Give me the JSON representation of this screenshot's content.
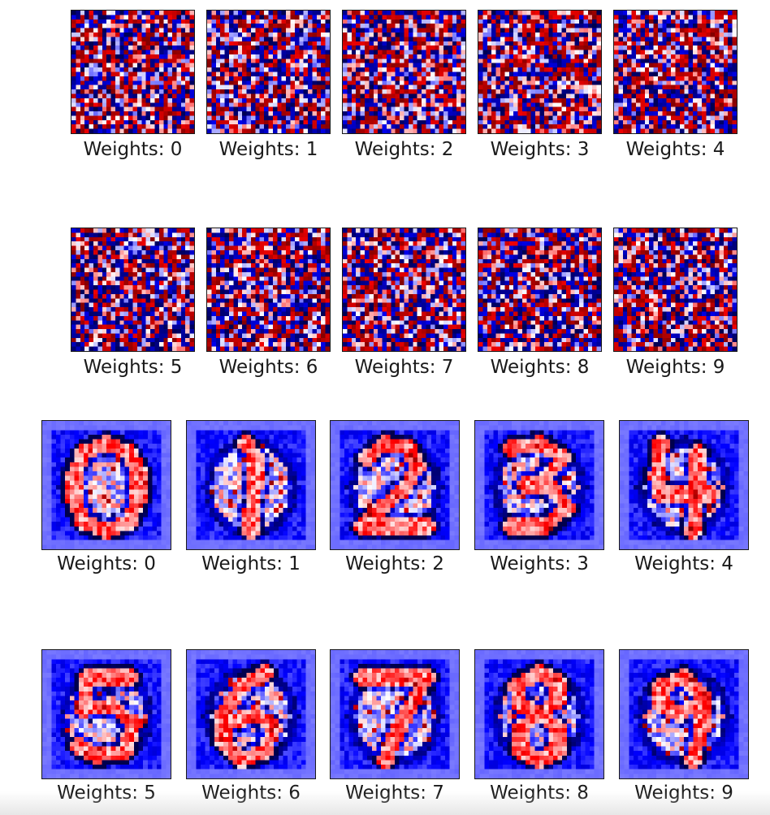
{
  "chart_data": [
    {
      "type": "heatmap",
      "colormap": "seismic",
      "grid": "28x28",
      "panels": [
        {
          "title": "Weights: 0"
        },
        {
          "title": "Weights: 1"
        },
        {
          "title": "Weights: 2"
        },
        {
          "title": "Weights: 3"
        },
        {
          "title": "Weights: 4"
        },
        {
          "title": "Weights: 5"
        },
        {
          "title": "Weights: 6"
        },
        {
          "title": "Weights: 7"
        },
        {
          "title": "Weights: 8"
        },
        {
          "title": "Weights: 9"
        }
      ],
      "pattern": "random-initialization"
    },
    {
      "type": "heatmap",
      "colormap": "seismic",
      "grid": "28x28",
      "panels": [
        {
          "title": "Weights: 0"
        },
        {
          "title": "Weights: 1"
        },
        {
          "title": "Weights: 2"
        },
        {
          "title": "Weights: 3"
        },
        {
          "title": "Weights: 4"
        },
        {
          "title": "Weights: 5"
        },
        {
          "title": "Weights: 6"
        },
        {
          "title": "Weights: 7"
        },
        {
          "title": "Weights: 8"
        },
        {
          "title": "Weights: 9"
        }
      ],
      "pattern": "trained-digit-templates"
    }
  ]
}
